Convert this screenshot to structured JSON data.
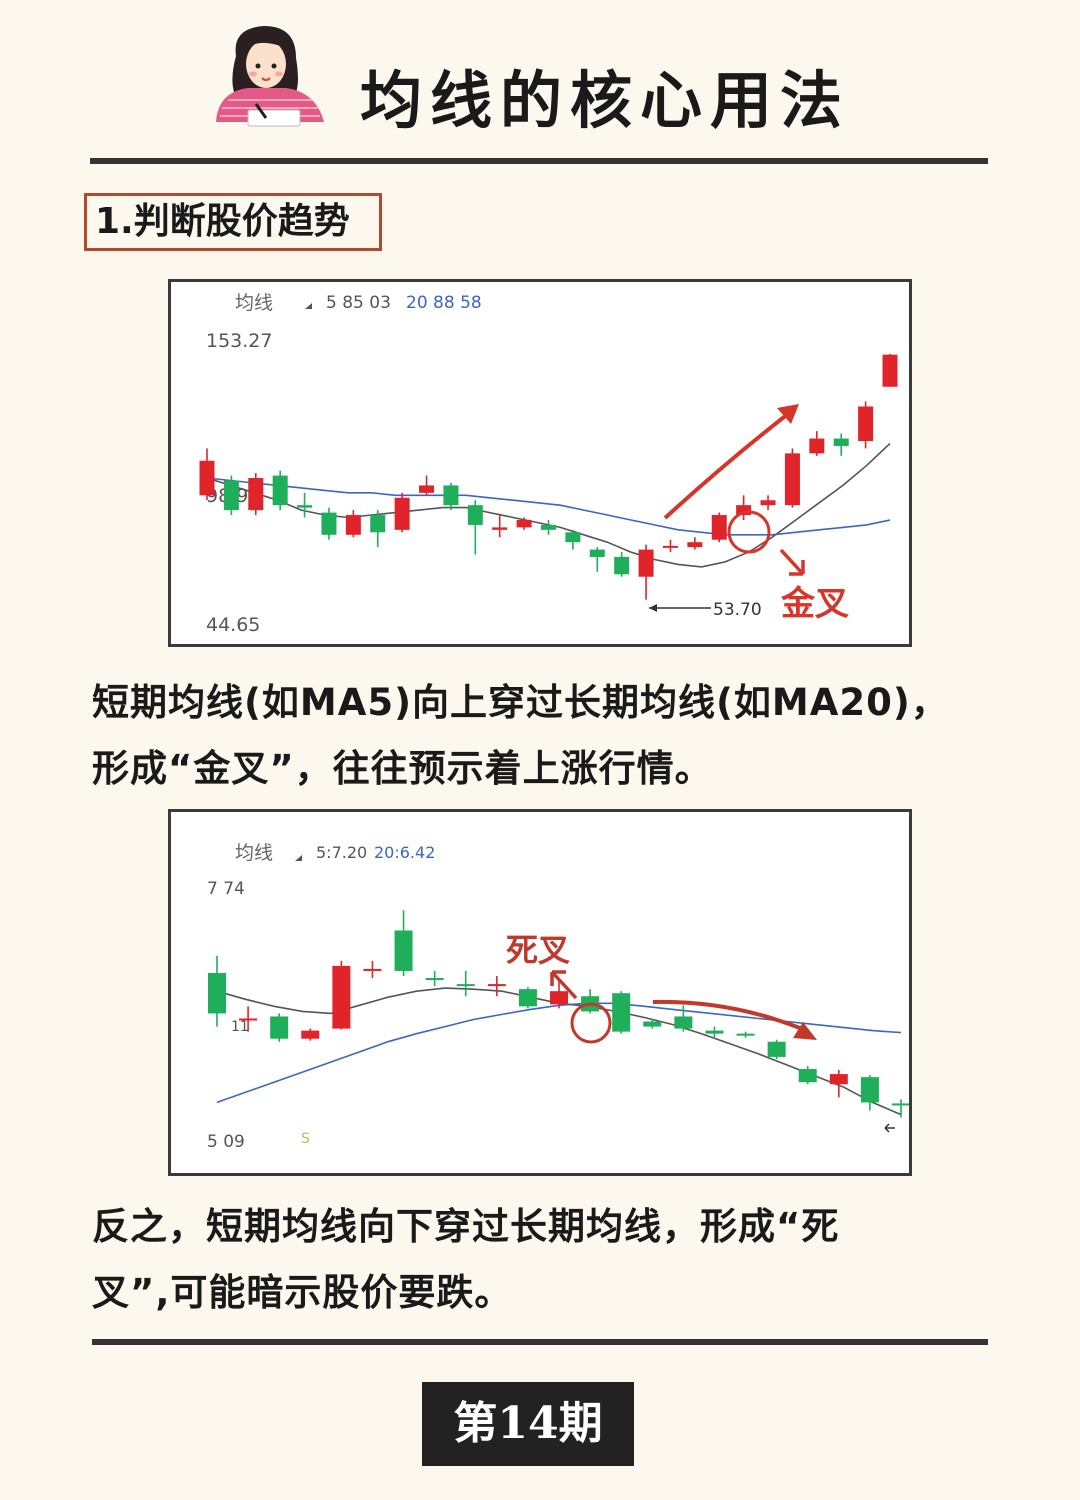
{
  "header": {
    "title": "均线的核心用法"
  },
  "section": {
    "label": "1.判断股价趋势"
  },
  "chart1": {
    "legend_label": "均线",
    "legend_ma5": "5 85 03",
    "legend_ma20": "20 88 58",
    "y_top_label": "153.27",
    "y_mid_label": "98.9",
    "y_bottom_label": "44.65",
    "low_label": "53.70",
    "cross_label": "金叉"
  },
  "paragraph1": {
    "line1": "短期均线(如MA5)向上穿过长期均线(如MA20)，",
    "line2": "形成“金叉”，往往预示着上涨行情。"
  },
  "chart2": {
    "legend_label": "均线",
    "legend_ma5": "5:7.20",
    "legend_ma20": "20:6.42",
    "y_top_label": "7 74",
    "y_mid_label": "11",
    "y_bottom_label": "5 09",
    "s_marker": "S",
    "cross_label": "死叉"
  },
  "paragraph2": {
    "line1": "反之，短期均线向下穿过长期均线，形成“死",
    "line2": "叉”,可能暗示股价要跌。"
  },
  "footer": {
    "issue": "第14期"
  },
  "colors": {
    "up": "#e0242a",
    "down": "#1fae5a",
    "ma5": "#555555",
    "ma20": "#3b66c4",
    "annotation": "#d8352a"
  },
  "chart_data": [
    {
      "type": "candlestick",
      "title": "均线",
      "ylim": [
        44.65,
        153.27
      ],
      "annotations": [
        "金叉",
        "53.70"
      ],
      "series": [
        {
          "name": "5",
          "values": [
            103,
            100,
            97,
            94,
            90,
            88,
            87,
            88,
            89,
            90,
            91,
            91,
            89,
            87,
            85,
            83,
            80,
            77,
            73,
            70,
            68,
            67,
            69,
            73,
            79,
            86,
            93,
            100,
            108,
            117
          ]
        },
        {
          "name": "20",
          "values": [
            103,
            102,
            101,
            100,
            99,
            98,
            97,
            97,
            96,
            96,
            96,
            96,
            95,
            94,
            93,
            92,
            90,
            88,
            86,
            84,
            82,
            81,
            80,
            80,
            80,
            81,
            82,
            83,
            84,
            86
          ]
        }
      ],
      "candles": [
        {
          "o": 96,
          "c": 110,
          "h": 115,
          "l": 94
        },
        {
          "o": 102,
          "c": 90,
          "h": 104,
          "l": 88
        },
        {
          "o": 90,
          "c": 103,
          "h": 105,
          "l": 88
        },
        {
          "o": 104,
          "c": 92,
          "h": 106,
          "l": 90
        },
        {
          "o": 92,
          "c": 91,
          "h": 97,
          "l": 87
        },
        {
          "o": 89,
          "c": 80,
          "h": 91,
          "l": 78
        },
        {
          "o": 80,
          "c": 88,
          "h": 90,
          "l": 79
        },
        {
          "o": 88,
          "c": 81,
          "h": 90,
          "l": 75
        },
        {
          "o": 82,
          "c": 95,
          "h": 97,
          "l": 81
        },
        {
          "o": 97,
          "c": 100,
          "h": 104,
          "l": 96
        },
        {
          "o": 100,
          "c": 92,
          "h": 101,
          "l": 90
        },
        {
          "o": 92,
          "c": 84,
          "h": 94,
          "l": 72
        },
        {
          "o": 82,
          "c": 83,
          "h": 88,
          "l": 79
        },
        {
          "o": 83,
          "c": 86,
          "h": 87,
          "l": 82
        },
        {
          "o": 84,
          "c": 82,
          "h": 86,
          "l": 80
        },
        {
          "o": 81,
          "c": 77,
          "h": 82,
          "l": 74
        },
        {
          "o": 74,
          "c": 71,
          "h": 75,
          "l": 65
        },
        {
          "o": 71,
          "c": 64,
          "h": 73,
          "l": 63
        },
        {
          "o": 63,
          "c": 74,
          "h": 76,
          "l": 53.7
        },
        {
          "o": 75,
          "c": 75.5,
          "h": 78,
          "l": 73
        },
        {
          "o": 75,
          "c": 77,
          "h": 79,
          "l": 74
        },
        {
          "o": 78,
          "c": 88,
          "h": 89,
          "l": 77
        },
        {
          "o": 88,
          "c": 92,
          "h": 96,
          "l": 86
        },
        {
          "o": 92,
          "c": 94,
          "h": 96,
          "l": 90
        },
        {
          "o": 92,
          "c": 113,
          "h": 115,
          "l": 91
        },
        {
          "o": 113,
          "c": 119,
          "h": 122,
          "l": 112
        },
        {
          "o": 119,
          "c": 116,
          "h": 121,
          "l": 112
        },
        {
          "o": 118,
          "c": 132,
          "h": 134,
          "l": 115
        },
        {
          "o": 140,
          "c": 153,
          "h": 153.27,
          "l": 140
        }
      ]
    },
    {
      "type": "candlestick",
      "title": "均线",
      "ylim": [
        5.09,
        7.74
      ],
      "annotations": [
        "死叉"
      ],
      "series": [
        {
          "name": "5",
          "values": [
            6.7,
            6.62,
            6.55,
            6.5,
            6.48,
            6.56,
            6.64,
            6.7,
            6.73,
            6.72,
            6.7,
            6.64,
            6.58,
            6.55,
            6.5,
            6.44,
            6.37,
            6.28,
            6.18,
            6.08,
            5.97,
            5.86,
            5.75,
            5.6,
            5.48
          ]
        },
        {
          "name": "20",
          "values": [
            5.6,
            5.7,
            5.8,
            5.9,
            6.0,
            6.1,
            6.2,
            6.28,
            6.35,
            6.42,
            6.47,
            6.52,
            6.56,
            6.58,
            6.58,
            6.55,
            6.52,
            6.49,
            6.46,
            6.43,
            6.4,
            6.37,
            6.34,
            6.31,
            6.29
          ]
        }
      ],
      "candles": [
        {
          "o": 6.88,
          "c": 6.48,
          "h": 7.05,
          "l": 6.35
        },
        {
          "o": 6.42,
          "c": 6.43,
          "h": 6.55,
          "l": 6.3
        },
        {
          "o": 6.45,
          "c": 6.23,
          "h": 6.48,
          "l": 6.2
        },
        {
          "o": 6.23,
          "c": 6.31,
          "h": 6.33,
          "l": 6.21
        },
        {
          "o": 6.33,
          "c": 6.95,
          "h": 7.0,
          "l": 6.32
        },
        {
          "o": 6.9,
          "c": 6.92,
          "h": 7.0,
          "l": 6.83
        },
        {
          "o": 7.3,
          "c": 6.9,
          "h": 7.5,
          "l": 6.85
        },
        {
          "o": 6.83,
          "c": 6.82,
          "h": 6.9,
          "l": 6.75
        },
        {
          "o": 6.77,
          "c": 6.76,
          "h": 6.9,
          "l": 6.65
        },
        {
          "o": 6.76,
          "c": 6.77,
          "h": 6.85,
          "l": 6.65
        },
        {
          "o": 6.72,
          "c": 6.55,
          "h": 6.74,
          "l": 6.53
        },
        {
          "o": 6.57,
          "c": 6.7,
          "h": 6.82,
          "l": 6.53
        },
        {
          "o": 6.65,
          "c": 6.5,
          "h": 6.72,
          "l": 6.48
        },
        {
          "o": 6.68,
          "c": 6.3,
          "h": 6.7,
          "l": 6.28
        },
        {
          "o": 6.4,
          "c": 6.35,
          "h": 6.43,
          "l": 6.33
        },
        {
          "o": 6.45,
          "c": 6.33,
          "h": 6.56,
          "l": 6.3
        },
        {
          "o": 6.31,
          "c": 6.28,
          "h": 6.35,
          "l": 6.23
        },
        {
          "o": 6.28,
          "c": 6.26,
          "h": 6.3,
          "l": 6.24
        },
        {
          "o": 6.2,
          "c": 6.05,
          "h": 6.22,
          "l": 6.03
        },
        {
          "o": 5.93,
          "c": 5.8,
          "h": 5.96,
          "l": 5.78
        },
        {
          "o": 5.78,
          "c": 5.88,
          "h": 5.92,
          "l": 5.65
        },
        {
          "o": 5.85,
          "c": 5.6,
          "h": 5.87,
          "l": 5.52
        },
        {
          "o": 5.59,
          "c": 5.58,
          "h": 5.63,
          "l": 5.45
        }
      ]
    }
  ]
}
